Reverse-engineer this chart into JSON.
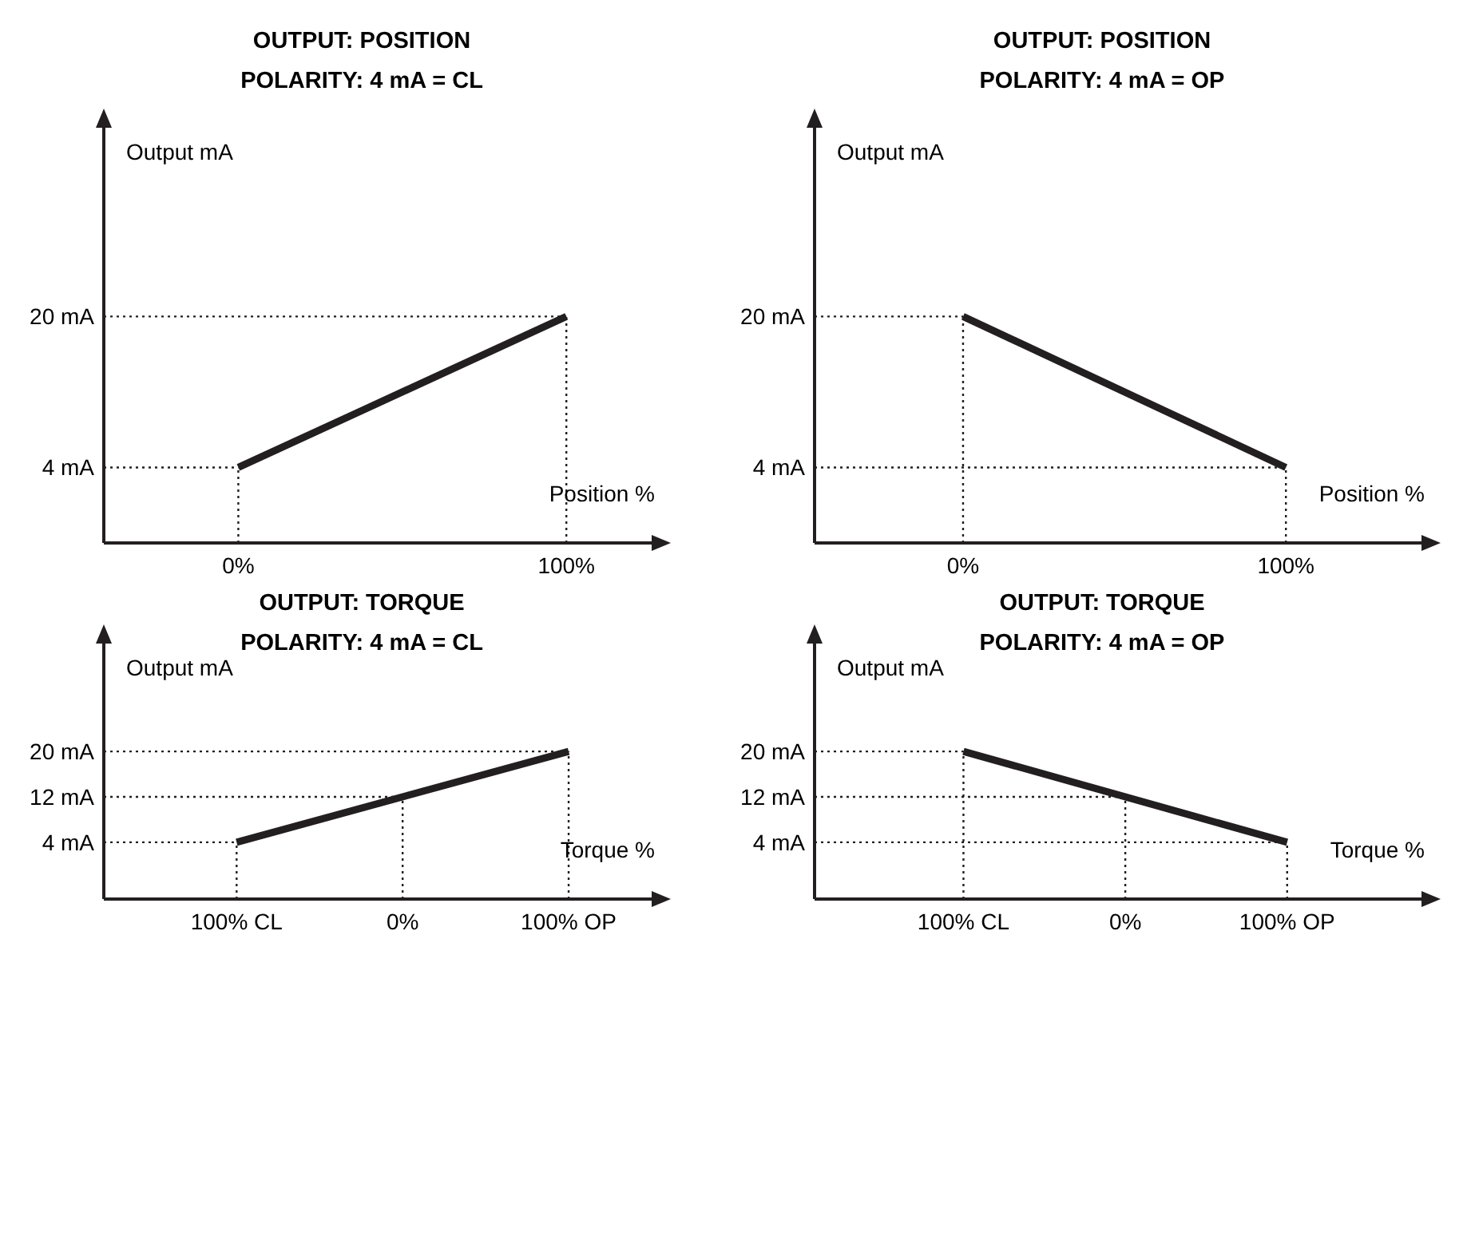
{
  "chart_data": [
    {
      "type": "line",
      "title": "OUTPUT: POSITION",
      "subtitle": "POLARITY: 4 mA = CL",
      "xlabel": "Position %",
      "ylabel": "Output mA",
      "x": [
        0,
        100
      ],
      "series": [
        {
          "color": "#231f20",
          "values": [
            4,
            20
          ]
        }
      ],
      "xlim": [
        -41,
        126
      ],
      "ylim": [
        -4,
        40
      ],
      "xticks": [
        {
          "value": 0,
          "label": "0%"
        },
        {
          "value": 100,
          "label": "100%"
        }
      ],
      "yticks": [
        {
          "value": 4,
          "label": "4 mA"
        },
        {
          "value": 20,
          "label": "20 mA"
        }
      ],
      "ref_lines": [
        {
          "axis": "x",
          "value": 0,
          "line_style": "dotted"
        },
        {
          "axis": "x",
          "value": 100,
          "line_style": "dotted"
        },
        {
          "axis": "y",
          "value": 4,
          "line_style": "dotted"
        },
        {
          "axis": "y",
          "value": 20,
          "line_style": "dotted"
        }
      ],
      "marker": "none",
      "line_style": "solid"
    },
    {
      "type": "line",
      "title": "OUTPUT: POSITION",
      "subtitle": "POLARITY: 4 mA = OP",
      "xlabel": "Position %",
      "ylabel": "Output mA",
      "x": [
        0,
        100
      ],
      "series": [
        {
          "color": "#231f20",
          "values": [
            20,
            4
          ]
        }
      ],
      "xlim": [
        -46,
        142
      ],
      "ylim": [
        -4,
        40
      ],
      "xticks": [
        {
          "value": 0,
          "label": "0%"
        },
        {
          "value": 100,
          "label": "100%"
        }
      ],
      "yticks": [
        {
          "value": 4,
          "label": "4 mA"
        },
        {
          "value": 20,
          "label": "20 mA"
        }
      ],
      "ref_lines": [
        {
          "axis": "x",
          "value": 0,
          "line_style": "dotted"
        },
        {
          "axis": "x",
          "value": 100,
          "line_style": "dotted"
        },
        {
          "axis": "y",
          "value": 4,
          "line_style": "dotted"
        },
        {
          "axis": "y",
          "value": 20,
          "line_style": "dotted"
        }
      ],
      "marker": "none",
      "line_style": "solid"
    },
    {
      "type": "line",
      "title": "OUTPUT: TORQUE",
      "subtitle": "POLARITY: 4 mA = CL",
      "xlabel": "Torque %",
      "ylabel": "Output mA",
      "x": [
        -100,
        100
      ],
      "series": [
        {
          "color": "#231f20",
          "values": [
            4,
            20
          ]
        }
      ],
      "xlim": [
        -180,
        150
      ],
      "ylim": [
        -6,
        39
      ],
      "xticks": [
        {
          "value": -100,
          "label": "100% CL"
        },
        {
          "value": 0,
          "label": "0%"
        },
        {
          "value": 100,
          "label": "100% OP"
        }
      ],
      "yticks": [
        {
          "value": 4,
          "label": "4 mA"
        },
        {
          "value": 12,
          "label": "12 mA"
        },
        {
          "value": 20,
          "label": "20 mA"
        }
      ],
      "ref_lines": [
        {
          "axis": "x",
          "value": -100,
          "line_style": "dotted"
        },
        {
          "axis": "x",
          "value": 0,
          "line_style": "dotted"
        },
        {
          "axis": "x",
          "value": 100,
          "line_style": "dotted"
        },
        {
          "axis": "y",
          "value": 4,
          "line_style": "dotted"
        },
        {
          "axis": "y",
          "value": 12,
          "line_style": "dotted"
        },
        {
          "axis": "y",
          "value": 20,
          "line_style": "dotted"
        }
      ],
      "marker": "none",
      "line_style": "solid"
    },
    {
      "type": "line",
      "title": "OUTPUT: TORQUE",
      "subtitle": "POLARITY: 4 mA = OP",
      "xlabel": "Torque %",
      "ylabel": "Output mA",
      "x": [
        -100,
        100
      ],
      "series": [
        {
          "color": "#231f20",
          "values": [
            20,
            4
          ]
        }
      ],
      "xlim": [
        -192,
        183
      ],
      "ylim": [
        -6,
        39
      ],
      "xticks": [
        {
          "value": -100,
          "label": "100% CL"
        },
        {
          "value": 0,
          "label": "0%"
        },
        {
          "value": 100,
          "label": "100% OP"
        }
      ],
      "yticks": [
        {
          "value": 4,
          "label": "4 mA"
        },
        {
          "value": 12,
          "label": "12 mA"
        },
        {
          "value": 20,
          "label": "20 mA"
        }
      ],
      "ref_lines": [
        {
          "axis": "x",
          "value": -100,
          "line_style": "dotted"
        },
        {
          "axis": "x",
          "value": 0,
          "line_style": "dotted"
        },
        {
          "axis": "x",
          "value": 100,
          "line_style": "dotted"
        },
        {
          "axis": "y",
          "value": 4,
          "line_style": "dotted"
        },
        {
          "axis": "y",
          "value": 12,
          "line_style": "dotted"
        },
        {
          "axis": "y",
          "value": 20,
          "line_style": "dotted"
        }
      ],
      "marker": "none",
      "line_style": "solid"
    }
  ]
}
